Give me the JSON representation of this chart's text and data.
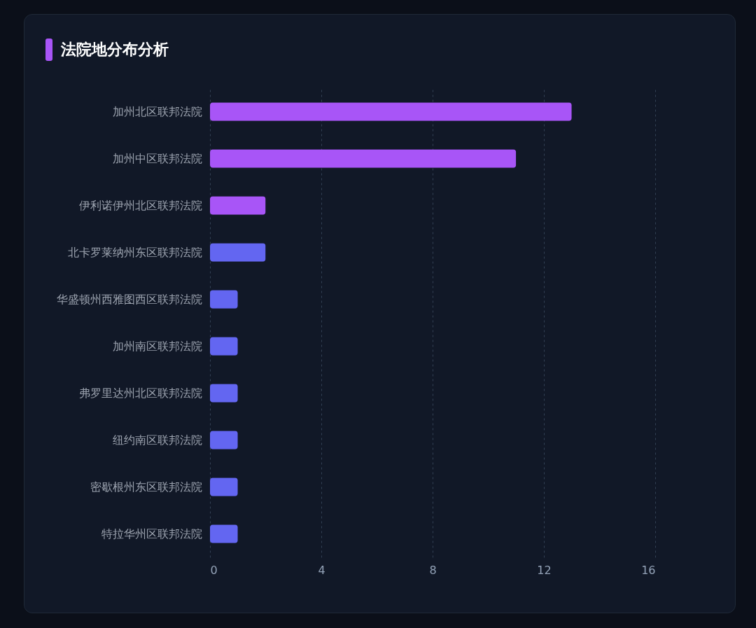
{
  "chart_data": {
    "type": "bar",
    "orientation": "horizontal",
    "title": "法院地分布分析",
    "categories": [
      "加州北区联邦法院",
      "加州中区联邦法院",
      "伊利诺伊州北区联邦法院",
      "北卡罗莱纳州东区联邦法院",
      "华盛顿州西雅图西区联邦法院",
      "加州南区联邦法院",
      "弗罗里达州北区联邦法院",
      "纽约南区联邦法院",
      "密歇根州东区联邦法院",
      "特拉华州区联邦法院"
    ],
    "values": [
      13,
      11,
      2,
      2,
      1,
      1,
      1,
      1,
      1,
      1
    ],
    "colors": [
      "#a855f7",
      "#a855f7",
      "#a855f7",
      "#6366f1",
      "#6366f1",
      "#6366f1",
      "#6366f1",
      "#6366f1",
      "#6366f1",
      "#6366f1"
    ],
    "xlim": [
      0,
      16
    ],
    "xticks": [
      0,
      4,
      8,
      12,
      16
    ],
    "grid": "x"
  }
}
